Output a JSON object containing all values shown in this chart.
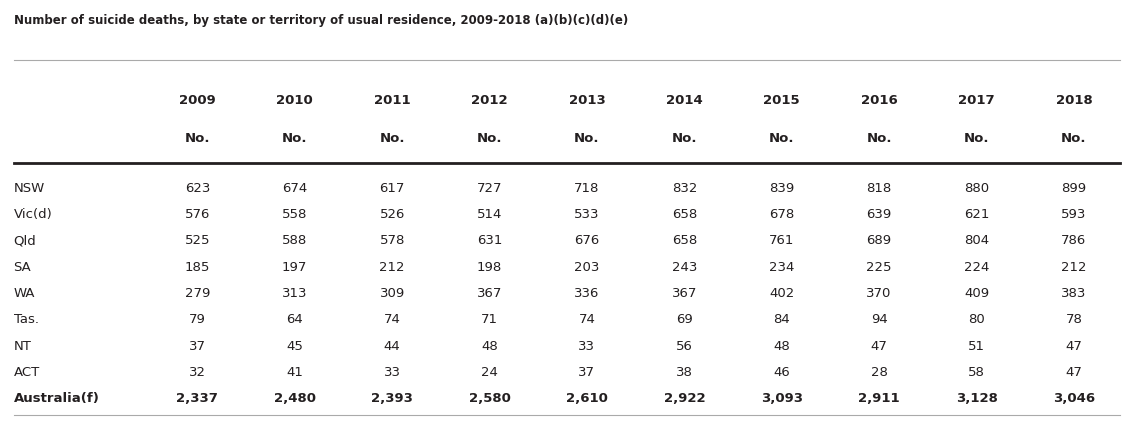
{
  "title": "Number of suicide deaths, by state or territory of usual residence, 2009-2018 (a)(b)(c)(d)(e)",
  "years": [
    "2009",
    "2010",
    "2011",
    "2012",
    "2013",
    "2014",
    "2015",
    "2016",
    "2017",
    "2018"
  ],
  "states": [
    "NSW",
    "Vic(d)",
    "Qld",
    "SA",
    "WA",
    "Tas.",
    "NT",
    "ACT",
    "Australia(f)"
  ],
  "data": {
    "NSW": [
      623,
      674,
      617,
      727,
      718,
      832,
      839,
      818,
      880,
      899
    ],
    "Vic(d)": [
      576,
      558,
      526,
      514,
      533,
      658,
      678,
      639,
      621,
      593
    ],
    "Qld": [
      525,
      588,
      578,
      631,
      676,
      658,
      761,
      689,
      804,
      786
    ],
    "SA": [
      185,
      197,
      212,
      198,
      203,
      243,
      234,
      225,
      224,
      212
    ],
    "WA": [
      279,
      313,
      309,
      367,
      336,
      367,
      402,
      370,
      409,
      383
    ],
    "Tas.": [
      79,
      64,
      74,
      71,
      74,
      69,
      84,
      94,
      80,
      78
    ],
    "NT": [
      37,
      45,
      44,
      48,
      33,
      56,
      48,
      47,
      51,
      47
    ],
    "ACT": [
      32,
      41,
      33,
      24,
      37,
      38,
      46,
      28,
      58,
      47
    ],
    "Australia(f)": [
      2337,
      2480,
      2393,
      2580,
      2610,
      2922,
      3093,
      2911,
      3128,
      3046
    ]
  },
  "bold_row": "Australia(f)",
  "background_color": "#ffffff",
  "text_color": "#231f20",
  "title_fontsize": 8.5,
  "header_fontsize": 9.5,
  "cell_fontsize": 9.5
}
